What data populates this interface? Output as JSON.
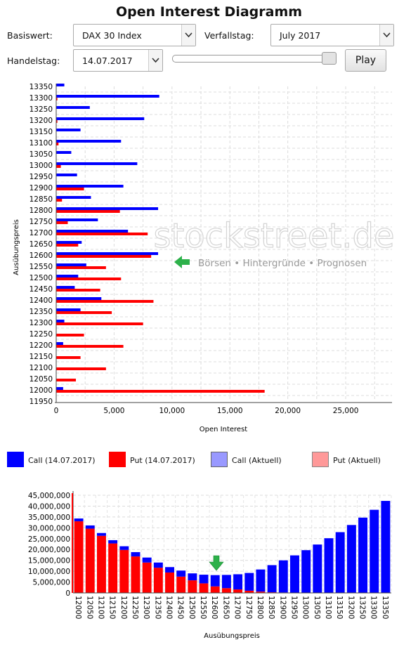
{
  "title": "Open Interest Diagramm",
  "controls": {
    "basiswert_label": "Basiswert:",
    "basiswert_value": "DAX 30 Index",
    "verfallstag_label": "Verfallstag:",
    "verfallstag_value": "July 2017",
    "handelstag_label": "Handelstag:",
    "handelstag_value": "14.07.2017",
    "play_label": "Play",
    "slider_position": 1.0
  },
  "watermark": {
    "brand": "stockstreet.de",
    "tagline": "Börsen • Hintergründe • Prognosen"
  },
  "legend": {
    "items": [
      {
        "label": "Call (14.07.2017)",
        "color": "#0000ff",
        "border": "#0000ff"
      },
      {
        "label": "Put (14.07.2017)",
        "color": "#ff0000",
        "border": "#ff0000"
      },
      {
        "label": "Call (Aktuell)",
        "color": "#9999ff",
        "border": "#666666"
      },
      {
        "label": "Put (Aktuell)",
        "color": "#ff9999",
        "border": "#888888"
      }
    ]
  },
  "chart_data": [
    {
      "type": "bar",
      "orientation": "horizontal",
      "title": "",
      "xlabel": "Open Interest",
      "ylabel": "Ausübungspreis",
      "xlim": [
        0,
        29000
      ],
      "x_ticks": [
        "0",
        "5,000",
        "10,000",
        "15,000",
        "20,000",
        "25,000"
      ],
      "x_tick_values": [
        0,
        5000,
        10000,
        15000,
        20000,
        25000
      ],
      "categories": [
        "13350",
        "13300",
        "13250",
        "13200",
        "13150",
        "13100",
        "13050",
        "13000",
        "12950",
        "12900",
        "12850",
        "12800",
        "12750",
        "12700",
        "12650",
        "12600",
        "12550",
        "12500",
        "12450",
        "12400",
        "12350",
        "12300",
        "12250",
        "12200",
        "12150",
        "12100",
        "12050",
        "12000",
        "11950"
      ],
      "series": [
        {
          "name": "Call (14.07.2017)",
          "color": "#0000ff",
          "values": [
            700,
            8900,
            2900,
            7600,
            2100,
            5600,
            1300,
            7000,
            1800,
            5800,
            3000,
            8800,
            3600,
            6200,
            2200,
            8800,
            2600,
            1900,
            1600,
            3900,
            2100,
            700,
            0,
            600,
            0,
            0,
            0,
            600,
            0
          ]
        },
        {
          "name": "Put (14.07.2017)",
          "color": "#ff0000",
          "values": [
            0,
            100,
            0,
            100,
            0,
            200,
            0,
            400,
            0,
            2400,
            500,
            5500,
            1000,
            7900,
            1900,
            8200,
            4300,
            5600,
            3800,
            8400,
            4800,
            7500,
            2400,
            5800,
            2100,
            4300,
            1700,
            18000,
            0
          ]
        }
      ],
      "grid": true
    },
    {
      "type": "bar",
      "stacked": true,
      "title": "",
      "xlabel": "Ausübungspreis",
      "ylabel": "",
      "ylim": [
        0,
        45000000
      ],
      "y_ticks": [
        "0",
        "5,000,000",
        "10,000,000",
        "15,000,000",
        "20,000,000",
        "25,000,000",
        "30,000,000",
        "35,000,000",
        "40,000,000",
        "45,000,000"
      ],
      "y_tick_values": [
        0,
        5000000,
        10000000,
        15000000,
        20000000,
        25000000,
        30000000,
        35000000,
        40000000,
        45000000
      ],
      "categories": [
        "12000",
        "12050",
        "12100",
        "12150",
        "12200",
        "12250",
        "12300",
        "12350",
        "12400",
        "12450",
        "12500",
        "12550",
        "12600",
        "12650",
        "12700",
        "12750",
        "12800",
        "12850",
        "12900",
        "12950",
        "13000",
        "13050",
        "13100",
        "13150",
        "13200",
        "13250",
        "13300",
        "13350"
      ],
      "series": [
        {
          "name": "Put",
          "color": "#ff0000",
          "values": [
            33000000,
            29600000,
            26300000,
            22800000,
            19800000,
            16800000,
            14000000,
            11600000,
            9400000,
            7500000,
            5800000,
            4400000,
            3000000,
            2200000,
            1600000,
            1000000,
            600000,
            300000,
            200000,
            100000,
            0,
            0,
            0,
            0,
            0,
            0,
            0,
            0
          ]
        },
        {
          "name": "Call",
          "color": "#0000ff",
          "values": [
            1300000,
            1500000,
            1300000,
            1500000,
            1700000,
            2000000,
            2300000,
            2400000,
            2500000,
            2800000,
            3200000,
            4000000,
            5200000,
            6100000,
            7000000,
            8200000,
            10200000,
            12500000,
            14800000,
            17200000,
            19700000,
            22300000,
            25200000,
            28000000,
            31300000,
            34700000,
            38300000,
            42400000
          ]
        }
      ],
      "grid": true
    }
  ]
}
